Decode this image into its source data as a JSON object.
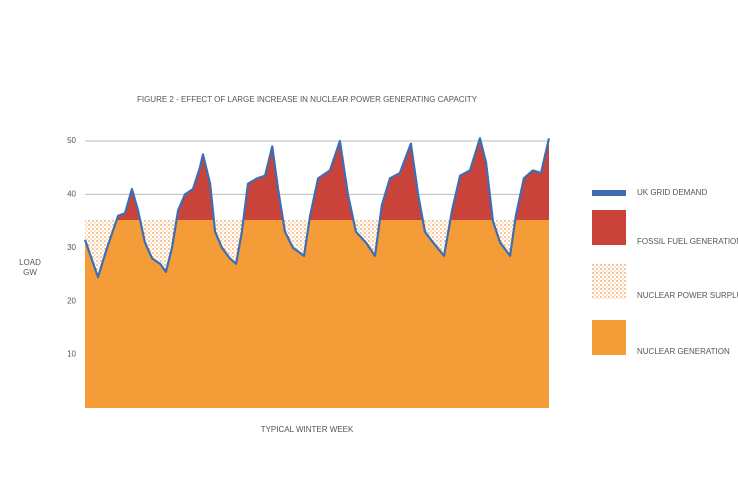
{
  "chart_data": {
    "type": "area",
    "title": "FIGURE 2 - EFFECT OF LARGE INCREASE IN NUCLEAR POWER GENERATING CAPACITY",
    "y_label": [
      "LOAD",
      "GW"
    ],
    "x_label": "TYPICAL WINTER WEEK",
    "xlim": [
      0,
      168
    ],
    "ylim": [
      0,
      50
    ],
    "yticks": [
      10,
      20,
      30,
      40,
      50
    ],
    "grid": true,
    "legend": "right",
    "x": [
      0,
      4.7,
      8,
      12,
      14.5,
      17,
      19.2,
      21.7,
      24.3,
      27.2,
      29.3,
      31.5,
      33.7,
      36.2,
      39.1,
      41.6,
      42.7,
      45.3,
      47.1,
      49.6,
      52.5,
      54.7,
      56.8,
      59,
      62.3,
      65.2,
      67.8,
      69.9,
      72.4,
      75.3,
      79.3,
      81.5,
      84.4,
      88.7,
      92.3,
      95.2,
      98.1,
      101.7,
      105,
      107.5,
      110.4,
      114,
      118,
      120.6,
      123.1,
      126,
      130,
      132.9,
      135.8,
      139.4,
      143,
      145.2,
      147.7,
      150.3,
      153.9,
      156,
      158.9,
      162.2,
      165.1,
      168
    ],
    "series": [
      {
        "name": "UK GRID DEMAND",
        "color": "#3f6db3",
        "values": [
          31.5,
          24.5,
          30,
          36,
          36.5,
          41,
          37,
          31,
          28,
          27,
          25.5,
          30,
          37,
          40,
          41,
          45,
          47.5,
          42,
          33,
          30,
          28,
          27,
          33,
          42,
          43,
          43.5,
          49,
          41,
          33,
          30,
          28.5,
          36,
          43,
          44.5,
          50,
          40,
          33,
          31,
          28.5,
          38,
          43,
          44,
          49.5,
          40,
          33,
          31,
          28.5,
          37,
          43.5,
          44.5,
          50.5,
          46,
          35,
          31,
          28.5,
          36,
          43,
          44.5,
          44,
          50.5
        ]
      },
      {
        "name": "FOSSIL FUEL GENERATION",
        "color": "#c9433a"
      },
      {
        "name": "NUCLEAR POWER SURPLUS",
        "color": "#eea251"
      },
      {
        "name": "NUCLEAR GENERATION",
        "color": "#f49d38",
        "value": 35.2
      }
    ]
  }
}
